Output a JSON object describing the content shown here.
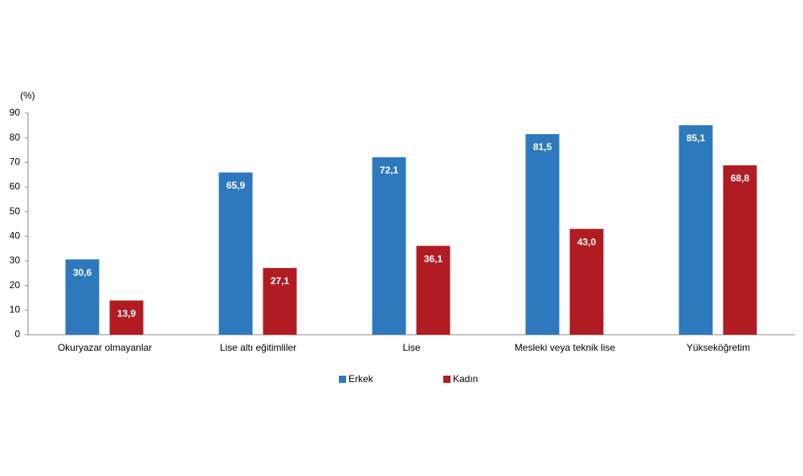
{
  "chart_data": {
    "type": "bar",
    "y_label": "(%)",
    "categories": [
      "Okuryazar olmayanlar",
      "Lise altı eğitimliler",
      "Lise",
      "Mesleki veya teknik lise",
      "Yükseköğretim"
    ],
    "series": [
      {
        "name": "Erkek",
        "color": "#2e78bd",
        "values": [
          30.6,
          65.9,
          72.1,
          81.5,
          85.1
        ],
        "value_labels": [
          "30,6",
          "65,9",
          "72,1",
          "81,5",
          "85,1"
        ]
      },
      {
        "name": "Kadın",
        "color": "#b01c22",
        "values": [
          13.9,
          27.1,
          36.1,
          43.0,
          68.8
        ],
        "value_labels": [
          "13,9",
          "27,1",
          "36,1",
          "43,0",
          "68,8"
        ]
      }
    ],
    "ylim": [
      0,
      90
    ],
    "yticks": [
      0,
      10,
      20,
      30,
      40,
      50,
      60,
      70,
      80,
      90
    ],
    "grid": false,
    "legend": "bottom"
  }
}
